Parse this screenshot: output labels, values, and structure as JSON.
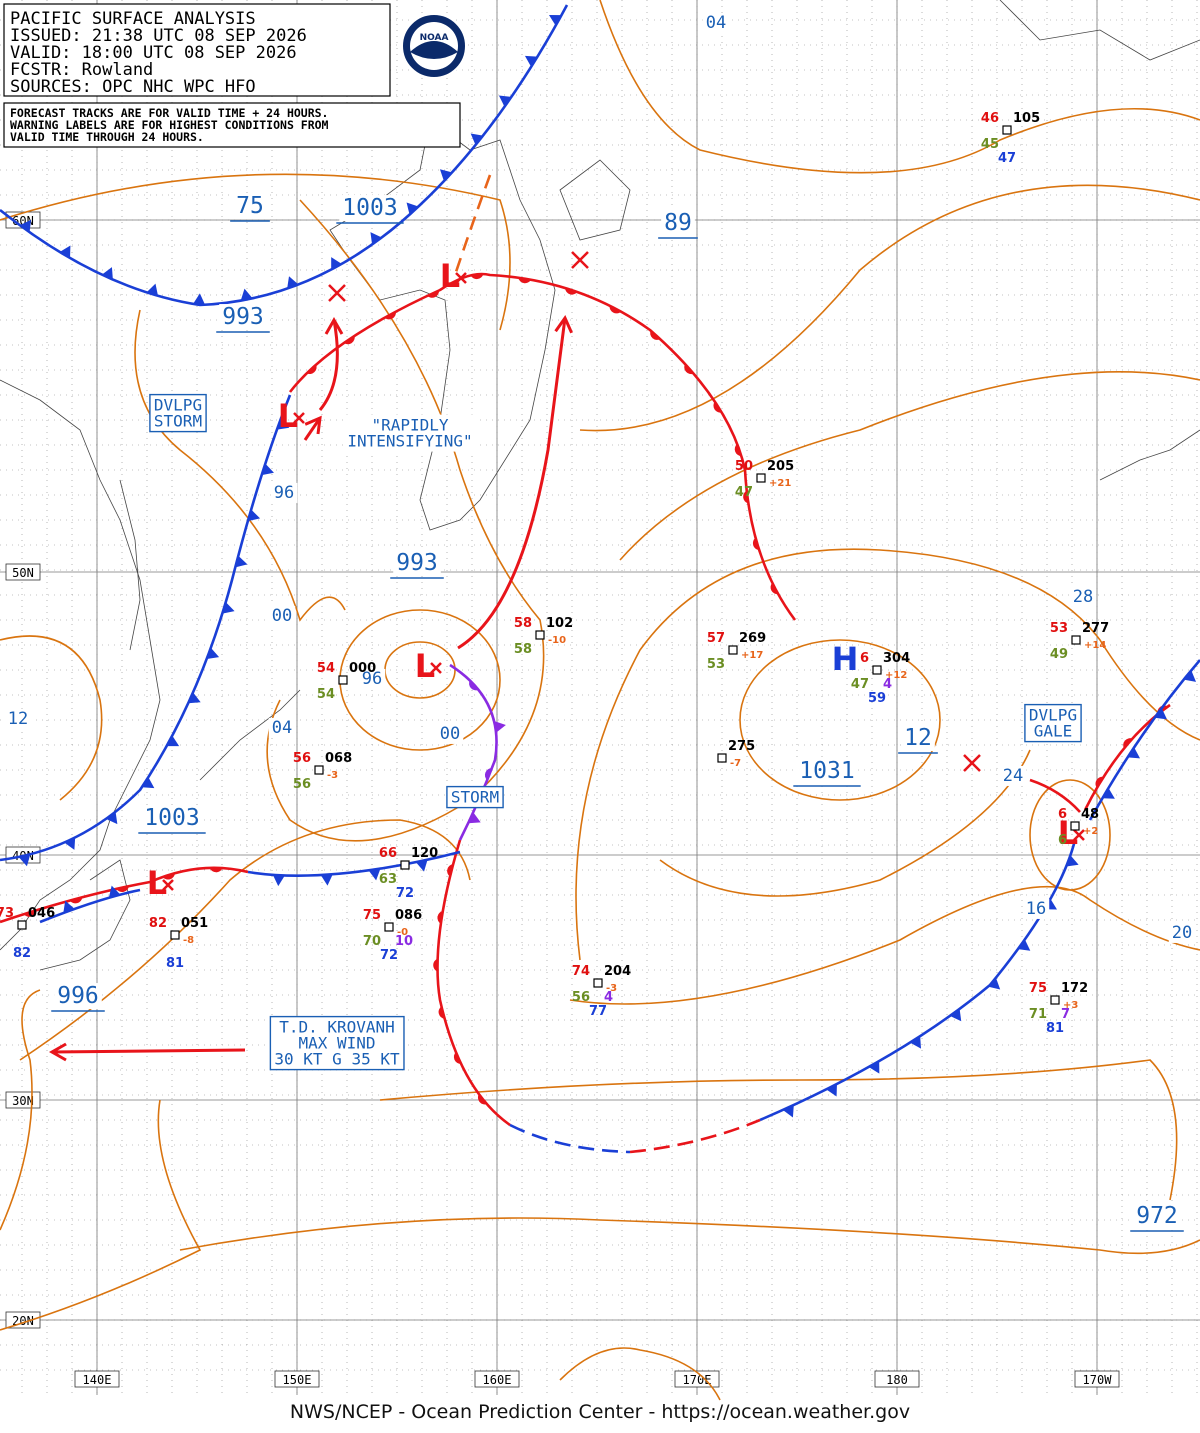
{
  "header": {
    "lines": [
      "PACIFIC SURFACE ANALYSIS",
      "ISSUED:  21:38 UTC 08 SEP 2026",
      "VALID:   18:00 UTC 08 SEP 2026",
      "FCSTR:   Rowland",
      "SOURCES: OPC NHC WPC HFO"
    ]
  },
  "logo": "NOAA",
  "note": {
    "lines": [
      "FORECAST TRACKS ARE FOR VALID TIME + 24 HOURS.",
      "WARNING LABELS ARE FOR HIGHEST CONDITIONS FROM",
      "VALID TIME THROUGH 24 HOURS."
    ]
  },
  "lat_labels": [
    "60N",
    "50N",
    "40N",
    "30N",
    "20N"
  ],
  "lon_labels": [
    "140E",
    "150E",
    "160E",
    "170E",
    "180",
    "170W"
  ],
  "isobar_labels": [
    {
      "text": "04",
      "big": false
    },
    {
      "text": "75",
      "big": true
    },
    {
      "text": "1003",
      "big": true
    },
    {
      "text": "89",
      "big": true
    },
    {
      "text": "993",
      "big": true
    },
    {
      "text": "96",
      "big": false
    },
    {
      "text": "993",
      "big": true
    },
    {
      "text": "00",
      "big": false
    },
    {
      "text": "96",
      "big": false
    },
    {
      "text": "04",
      "big": false
    },
    {
      "text": "00",
      "big": false
    },
    {
      "text": "12",
      "big": false
    },
    {
      "text": "1003",
      "big": true
    },
    {
      "text": "996",
      "big": true
    },
    {
      "text": "28",
      "big": false
    },
    {
      "text": "12",
      "big": true
    },
    {
      "text": "1031",
      "big": true
    },
    {
      "text": "24",
      "big": false
    },
    {
      "text": "16",
      "big": false
    },
    {
      "text": "20",
      "big": false
    },
    {
      "text": "972",
      "big": true
    }
  ],
  "warnings": [
    {
      "lines": [
        "DVLPG",
        "STORM"
      ],
      "boxed": true
    },
    {
      "lines": [
        "\"RAPIDLY",
        "INTENSIFYING\""
      ],
      "boxed": false
    },
    {
      "lines": [
        "STORM"
      ],
      "boxed": true
    },
    {
      "lines": [
        "DVLPG",
        "GALE"
      ],
      "boxed": true
    },
    {
      "lines": [
        "T.D. KROVANH",
        "MAX WIND",
        "30 KT G 35 KT"
      ],
      "boxed": true
    }
  ],
  "lows": [
    "L",
    "L",
    "L",
    "L",
    "L"
  ],
  "highs": [
    "H"
  ],
  "stations": [
    {
      "t": "46",
      "p": "105",
      "d": "45",
      "w": "47"
    },
    {
      "t": "50",
      "p": "205",
      "n": "+21",
      "d": "47"
    },
    {
      "t": "58",
      "p": "102",
      "n": "-10",
      "d": "58"
    },
    {
      "t": "57",
      "p": "269",
      "n": "+17",
      "d": "53"
    },
    {
      "t": "6",
      "p": "304",
      "n": "+12",
      "d": "47",
      "v": "4",
      "w": "59"
    },
    {
      "p": "275",
      "n": "-7"
    },
    {
      "t": "54",
      "p": "000",
      "d": "54"
    },
    {
      "t": "56",
      "p": "068",
      "n": "-3",
      "d": "56"
    },
    {
      "t": "66",
      "p": "120",
      "d": "63",
      "w": "72"
    },
    {
      "t": "75",
      "p": "086",
      "n": "-0",
      "d": "70",
      "v": "10",
      "w": "72"
    },
    {
      "t": "82",
      "p": "051",
      "n": "-8",
      "w": "81"
    },
    {
      "t": "73",
      "p": "046",
      "w": "82"
    },
    {
      "t": "74",
      "p": "204",
      "n": "-3",
      "d": "56",
      "v": "4",
      "w": "77"
    },
    {
      "t": "75",
      "p": "172",
      "n": "+3",
      "d": "71",
      "v": "7",
      "w": "81"
    },
    {
      "t": "53",
      "p": "277",
      "n": "+14",
      "d": "49"
    },
    {
      "t": "6",
      "p": "48",
      "n": "+2",
      "d": "6"
    }
  ],
  "footer": "NWS/NCEP - Ocean Prediction Center - https://ocean.weather.gov"
}
